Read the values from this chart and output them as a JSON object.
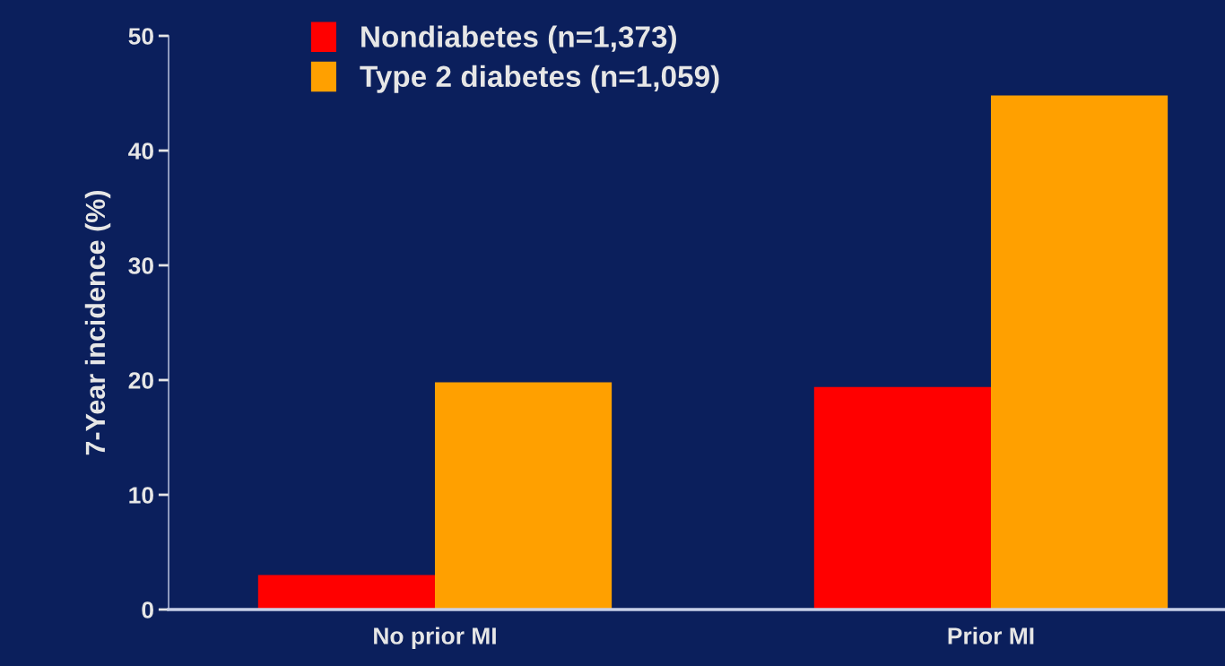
{
  "chart_data": {
    "type": "bar",
    "ylabel": "7-Year incidence (%)",
    "categories": [
      "No prior MI",
      "Prior MI"
    ],
    "series": [
      {
        "name": "Nondiabetes (n=1,373)",
        "color": "#ff0000",
        "values": [
          3.0,
          19.4
        ]
      },
      {
        "name": "Type 2 diabetes (n=1,059)",
        "color": "#ffa000",
        "values": [
          19.8,
          44.8
        ]
      }
    ],
    "ylim": [
      0,
      50
    ],
    "yticks": [
      0,
      10,
      20,
      30,
      40,
      50
    ],
    "grid": false,
    "legend": "top left"
  }
}
